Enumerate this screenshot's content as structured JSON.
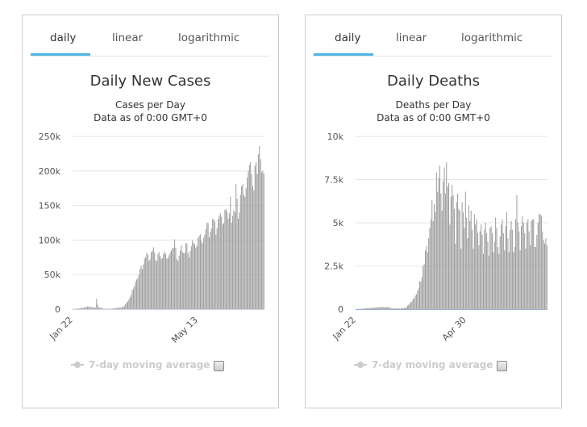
{
  "tabs": [
    "daily",
    "linear",
    "logarithmic"
  ],
  "legend": {
    "label": "7-day moving average",
    "checked": false
  },
  "colors": {
    "bar": "#9a9a9a",
    "accent": "#4db6e2",
    "grid": "#e6e6e6"
  },
  "chart_data": [
    {
      "type": "bar",
      "title": "Daily New Cases",
      "subtitle": "Cases per Day",
      "subtitle2": "Data as of 0:00 GMT+0",
      "ylim": [
        0,
        250000
      ],
      "yticks": [
        {
          "value": 0,
          "label": "0"
        },
        {
          "value": 50000,
          "label": "50k"
        },
        {
          "value": 100000,
          "label": "100k"
        },
        {
          "value": 150000,
          "label": "150k"
        },
        {
          "value": 200000,
          "label": "200k"
        },
        {
          "value": 250000,
          "label": "250k"
        }
      ],
      "xticks": [
        {
          "index": 0,
          "label": "Jan 22"
        },
        {
          "index": 112,
          "label": "May 13"
        }
      ],
      "grid": true,
      "values": [
        600,
        100,
        300,
        500,
        700,
        800,
        1400,
        1600,
        2000,
        1700,
        2600,
        2700,
        3200,
        3900,
        3700,
        3200,
        3400,
        2600,
        2800,
        2500,
        2000,
        15100,
        6400,
        2200,
        2100,
        2000,
        1800,
        600,
        500,
        600,
        700,
        500,
        400,
        400,
        600,
        1000,
        800,
        900,
        1800,
        1400,
        1800,
        2000,
        2600,
        2300,
        2900,
        3900,
        4600,
        7400,
        9700,
        10900,
        14100,
        17400,
        20600,
        27800,
        29600,
        34000,
        39900,
        42800,
        45000,
        50000,
        58500,
        62900,
        57500,
        64800,
        73000,
        75200,
        81300,
        79000,
        70100,
        72100,
        82500,
        84700,
        89500,
        81600,
        71000,
        69500,
        79800,
        82600,
        76800,
        72600,
        73800,
        79500,
        83000,
        80000,
        73000,
        74000,
        78000,
        82000,
        85000,
        88000,
        89000,
        101000,
        89000,
        72600,
        69700,
        77500,
        85000,
        92800,
        82600,
        81100,
        81000,
        95100,
        95300,
        81800,
        74800,
        84400,
        91300,
        99600,
        96000,
        93800,
        89200,
        91900,
        102900,
        106500,
        108300,
        98900,
        95200,
        103300,
        108000,
        115800,
        125300,
        124600,
        103800,
        112000,
        116700,
        130600,
        130100,
        127100,
        108000,
        117200,
        130400,
        135100,
        138600,
        133800,
        122800,
        124600,
        144000,
        145100,
        141300,
        130900,
        138500,
        162800,
        125000,
        135000,
        143000,
        140000,
        181500,
        160000,
        131000,
        140000,
        165600,
        177700,
        180900,
        165600,
        162500,
        175000,
        190000,
        200000,
        209000,
        213000,
        195000,
        178000,
        172000,
        208000,
        213000,
        196000,
        224000,
        236000,
        217000,
        198000,
        200000,
        196000
      ]
    },
    {
      "type": "bar",
      "title": "Daily Deaths",
      "subtitle": "Deaths per Day",
      "subtitle2": "Data as of 0:00 GMT+0",
      "ylim": [
        0,
        10000
      ],
      "yticks": [
        {
          "value": 0,
          "label": "0"
        },
        {
          "value": 2500,
          "label": "2.5k"
        },
        {
          "value": 5000,
          "label": "5k"
        },
        {
          "value": 7500,
          "label": "7.5k"
        },
        {
          "value": 10000,
          "label": "10k"
        }
      ],
      "xticks": [
        {
          "index": 0,
          "label": "Jan 22"
        },
        {
          "index": 99,
          "label": "Apr 30"
        }
      ],
      "grid": true,
      "values": [
        17,
        1,
        8,
        16,
        14,
        26,
        26,
        42,
        43,
        46,
        45,
        57,
        64,
        66,
        73,
        73,
        86,
        89,
        97,
        108,
        97,
        120,
        121,
        110,
        142,
        105,
        98,
        139,
        112,
        118,
        79,
        62,
        44,
        52,
        29,
        44,
        47,
        35,
        42,
        31,
        38,
        65,
        64,
        68,
        100,
        80,
        200,
        250,
        330,
        400,
        450,
        620,
        600,
        780,
        850,
        1050,
        1200,
        1600,
        1600,
        1850,
        2500,
        2600,
        3400,
        3650,
        3300,
        4100,
        4700,
        5200,
        6300,
        5100,
        6100,
        5600,
        7900,
        6800,
        7600,
        8300,
        6700,
        5700,
        7400,
        8200,
        6700,
        8500,
        7100,
        7300,
        4900,
        6500,
        7200,
        6600,
        5800,
        3800,
        6200,
        6700,
        5800,
        5700,
        3500,
        6200,
        5600,
        4700,
        6800,
        5300,
        4100,
        6000,
        5100,
        5700,
        4600,
        3500,
        5500,
        4900,
        5200,
        4400,
        3700,
        4500,
        4900,
        4300,
        3200,
        4600,
        5000,
        4400,
        3900,
        3100,
        4700,
        4800,
        4400,
        3300,
        3900,
        5300,
        4700,
        3600,
        3200,
        4200,
        4900,
        5200,
        4400,
        3400,
        4800,
        5600,
        4100,
        3300,
        4600,
        5100,
        4600,
        3300,
        3600,
        5200,
        6600,
        5000,
        4500,
        3400,
        4800,
        5400,
        5000,
        4400,
        3500,
        5000,
        5200,
        4500,
        3700,
        5100,
        5200,
        5200,
        3600,
        3600,
        4300,
        5000,
        5500,
        5500,
        5400,
        4500,
        4000,
        3800,
        4100,
        3700
      ]
    }
  ]
}
